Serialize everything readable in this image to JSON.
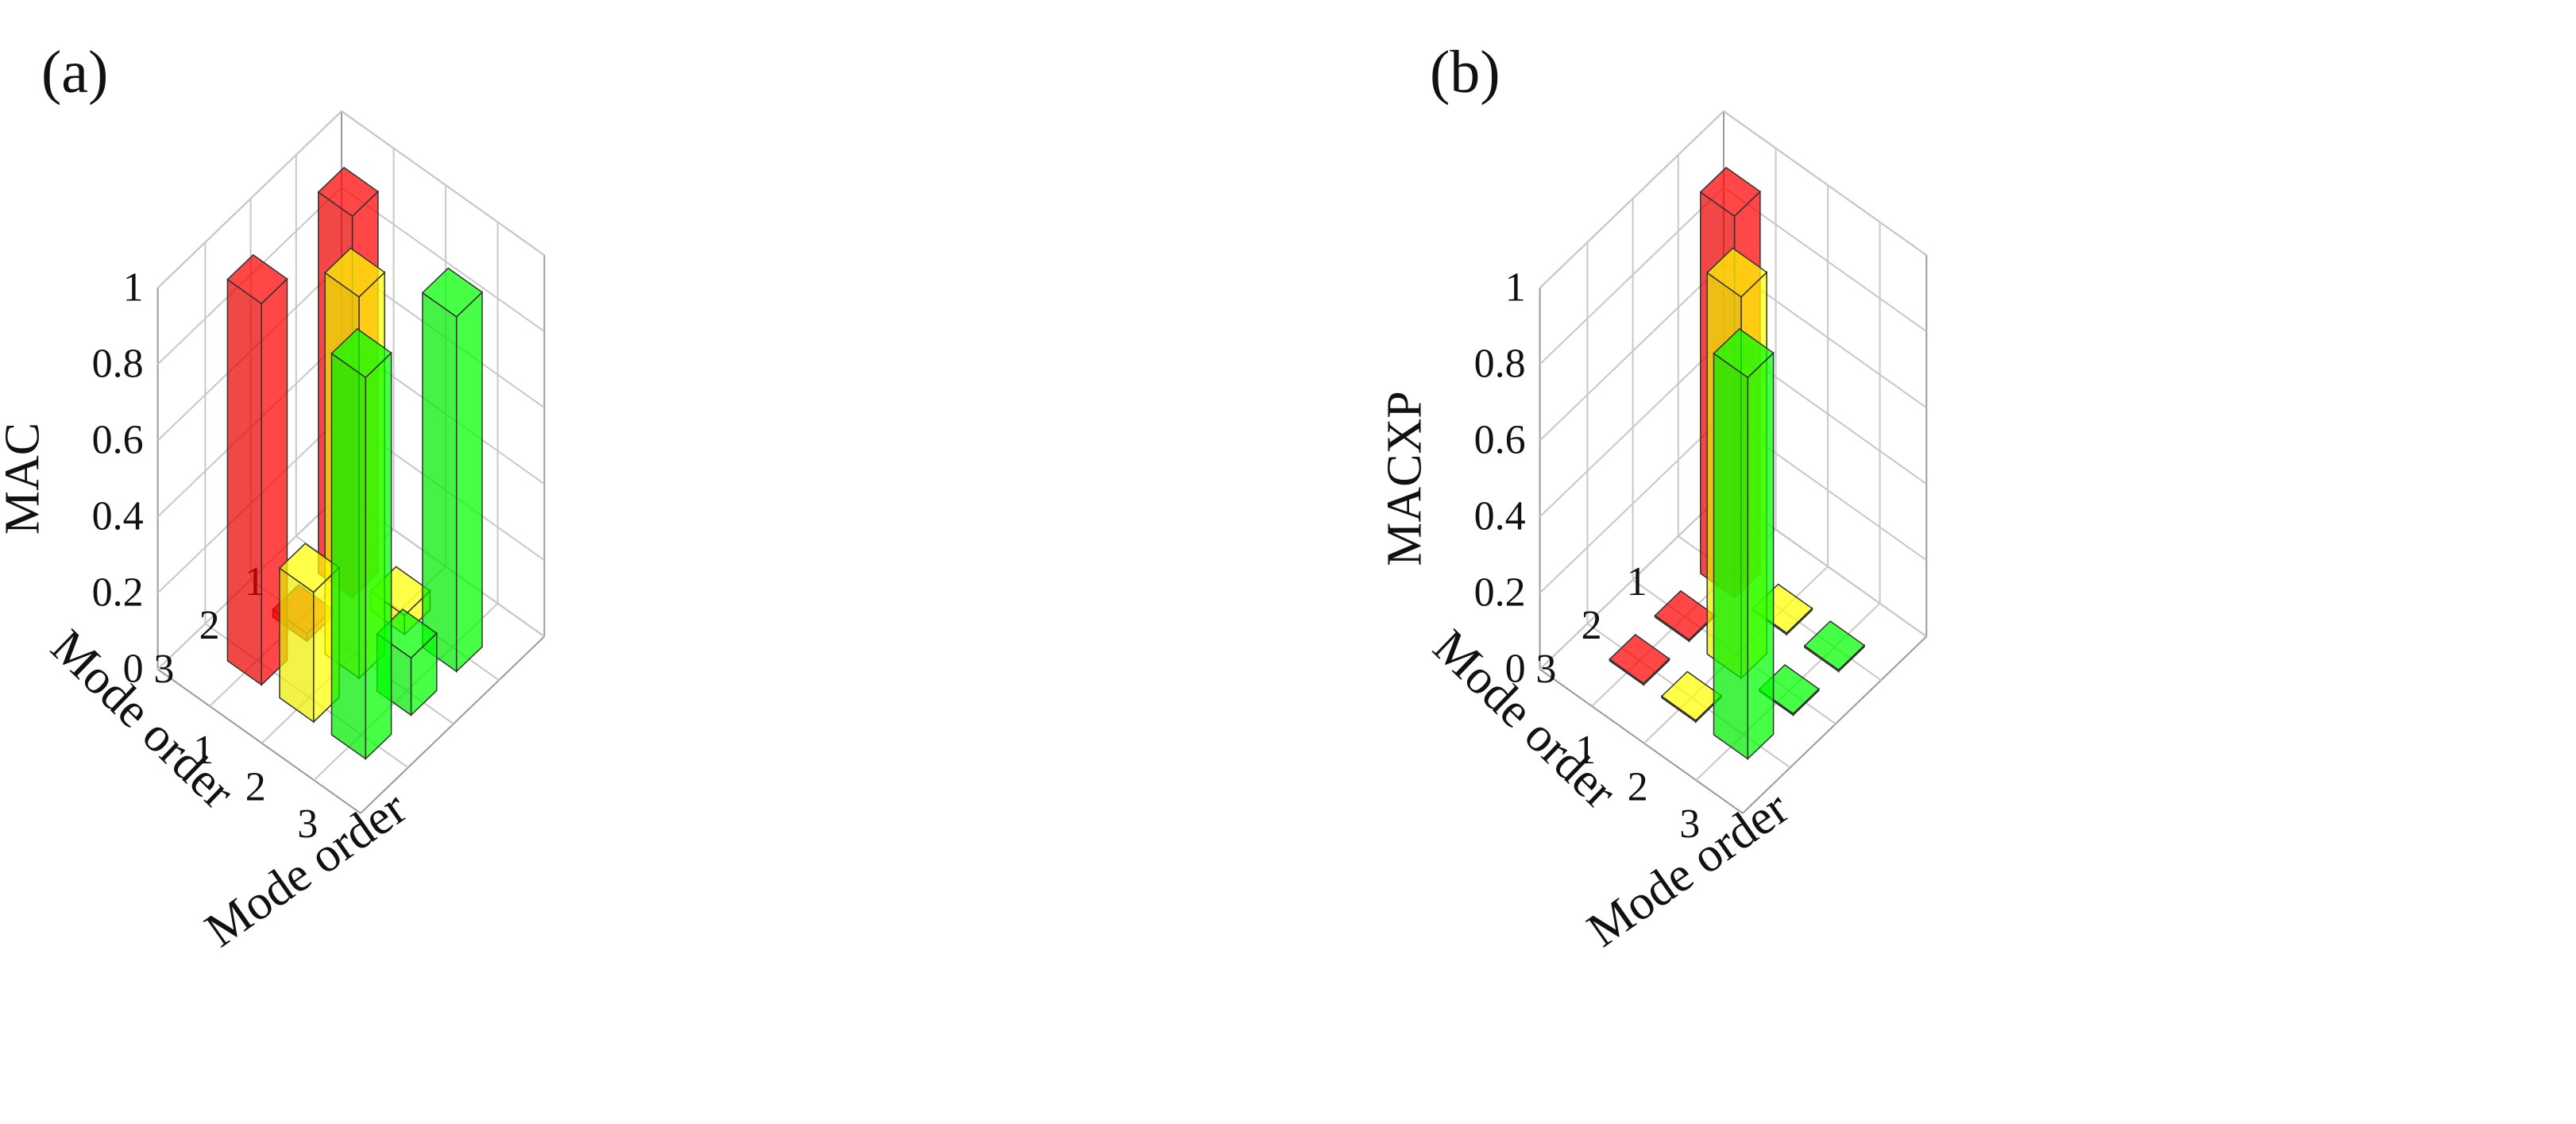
{
  "panels": [
    {
      "label": "(a)"
    },
    {
      "label": "(b)"
    }
  ],
  "chart_data": [
    {
      "type": "bar3d",
      "title": "",
      "zlabel": "MAC",
      "xlabel": "Mode order",
      "ylabel": "Mode order",
      "zlim": [
        0,
        1
      ],
      "z_ticks": [
        "0",
        "0.2",
        "0.4",
        "0.6",
        "0.8",
        "1"
      ],
      "x_ticks": [
        "1",
        "2",
        "3"
      ],
      "y_ticks": [
        "1",
        "2",
        "3"
      ],
      "colors": {
        "1": "#ff0000",
        "2": "#ffff00",
        "3": "#00ff00"
      },
      "bars": [
        {
          "row": 1,
          "col": 1,
          "value": 1.0
        },
        {
          "row": 1,
          "col": 2,
          "value": 0.05
        },
        {
          "row": 1,
          "col": 3,
          "value": 0.93
        },
        {
          "row": 2,
          "col": 1,
          "value": 0.02
        },
        {
          "row": 2,
          "col": 2,
          "value": 1.0
        },
        {
          "row": 2,
          "col": 3,
          "value": 0.15
        },
        {
          "row": 3,
          "col": 1,
          "value": 1.0
        },
        {
          "row": 3,
          "col": 2,
          "value": 0.34
        },
        {
          "row": 3,
          "col": 3,
          "value": 1.0
        }
      ]
    },
    {
      "type": "bar3d",
      "title": "",
      "zlabel": "MACXP",
      "xlabel": "Mode order",
      "ylabel": "Mode order",
      "zlim": [
        0,
        1
      ],
      "z_ticks": [
        "0",
        "0.2",
        "0.4",
        "0.6",
        "0.8",
        "1"
      ],
      "x_ticks": [
        "1",
        "2",
        "3"
      ],
      "y_ticks": [
        "1",
        "2",
        "3"
      ],
      "colors": {
        "1": "#ff0000",
        "2": "#ffff00",
        "3": "#00ff00"
      },
      "bars": [
        {
          "row": 1,
          "col": 1,
          "value": 1.0
        },
        {
          "row": 1,
          "col": 2,
          "value": 0.0
        },
        {
          "row": 1,
          "col": 3,
          "value": 0.0
        },
        {
          "row": 2,
          "col": 1,
          "value": 0.0
        },
        {
          "row": 2,
          "col": 2,
          "value": 1.0
        },
        {
          "row": 2,
          "col": 3,
          "value": 0.0
        },
        {
          "row": 3,
          "col": 1,
          "value": 0.0
        },
        {
          "row": 3,
          "col": 2,
          "value": 0.0
        },
        {
          "row": 3,
          "col": 3,
          "value": 1.0
        }
      ]
    }
  ]
}
